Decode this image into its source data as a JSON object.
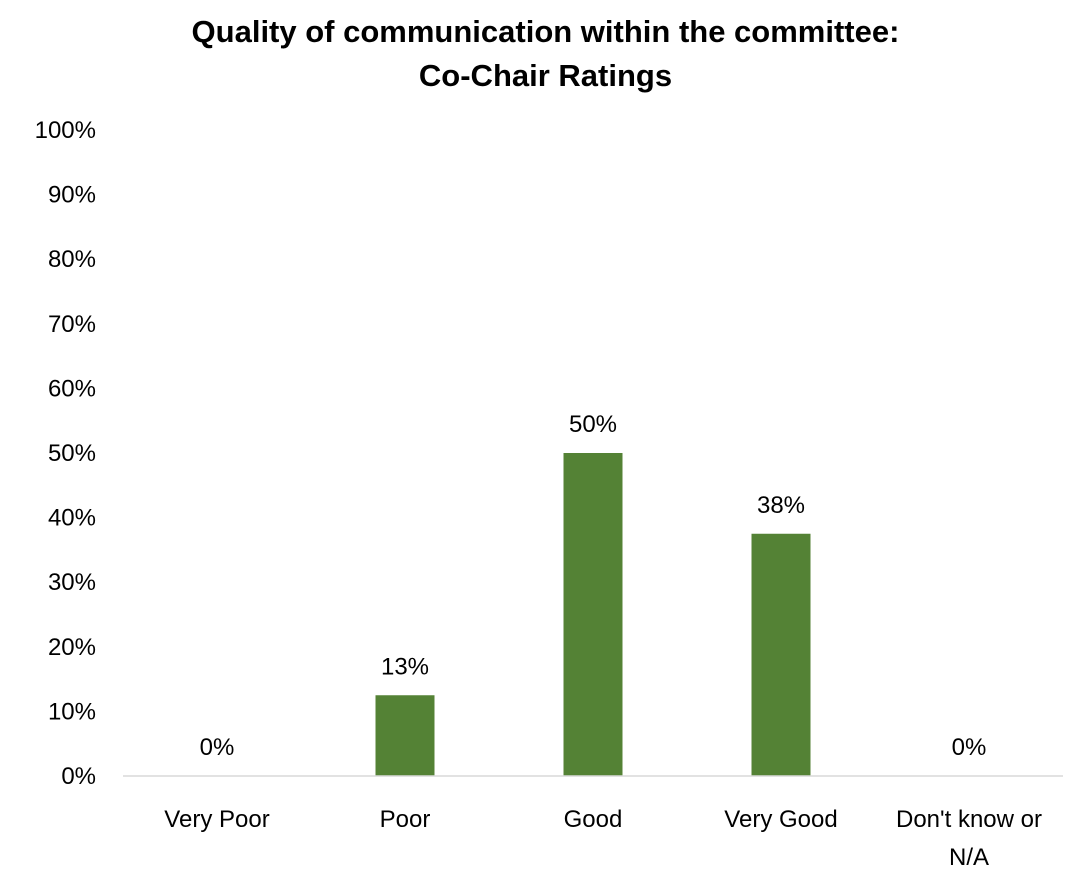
{
  "chart_data": {
    "type": "bar",
    "title_lines": [
      "Quality of communication within the committee:",
      "Co-Chair Ratings"
    ],
    "categories": [
      [
        "Very Poor"
      ],
      [
        "Poor"
      ],
      [
        "Good"
      ],
      [
        "Very Good"
      ],
      [
        "Don't know or",
        "N/A"
      ]
    ],
    "values": [
      0,
      12.5,
      50,
      37.5,
      0
    ],
    "data_labels": [
      "0%",
      "13%",
      "50%",
      "38%",
      "0%"
    ],
    "ylim": [
      0,
      100
    ],
    "yticks": [
      0,
      10,
      20,
      30,
      40,
      50,
      60,
      70,
      80,
      90,
      100
    ],
    "ytick_labels": [
      "0%",
      "10%",
      "20%",
      "30%",
      "40%",
      "50%",
      "60%",
      "70%",
      "80%",
      "90%",
      "100%"
    ],
    "grid": false,
    "legend": "none",
    "bar_color": "#548235",
    "axis_color": "#d9d9d9"
  }
}
